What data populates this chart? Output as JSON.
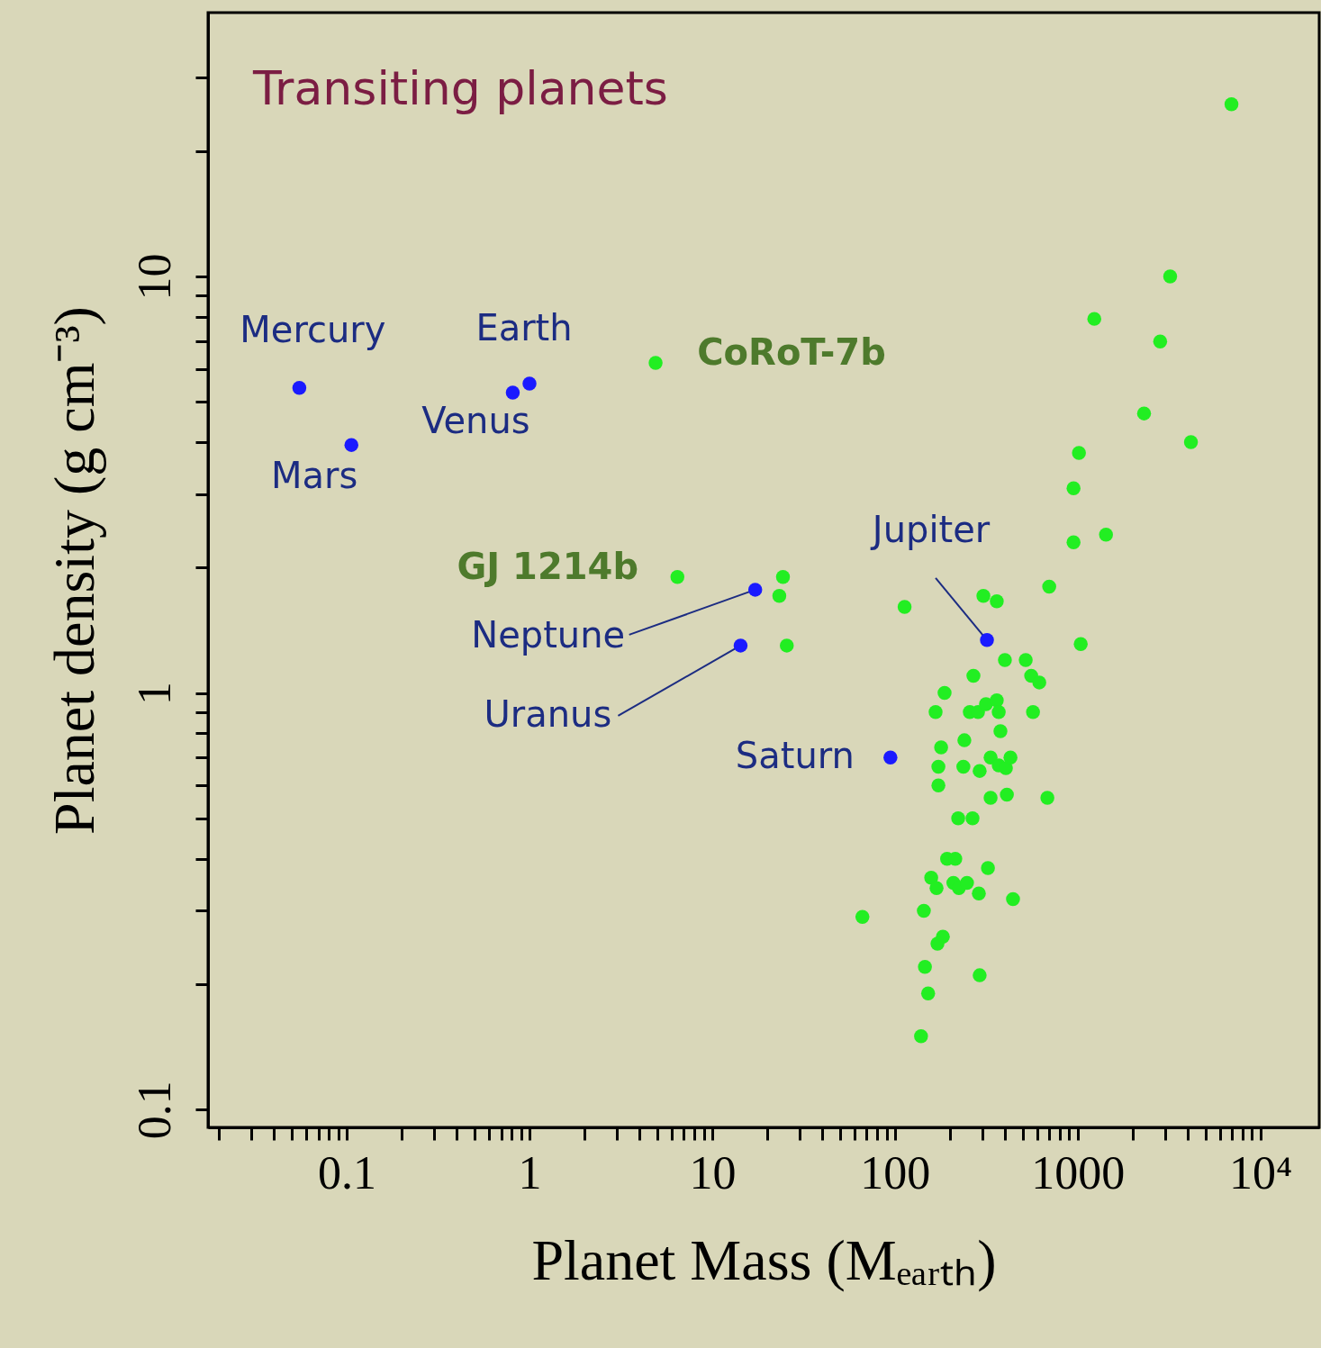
{
  "chart_data": {
    "type": "scatter",
    "title": "Transiting planets",
    "xlabel": "Planet Mass (Mₑₐᵣₜₕ)",
    "ylabel": "Planet density (g cm⁻³)",
    "log": "xy",
    "grid": false,
    "marker": "circle",
    "xlim": [
      0.0174,
      21000
    ],
    "ylim": [
      0.0906,
      43
    ],
    "xticks": [
      {
        "value": 0.02,
        "label": null
      },
      {
        "value": 0.03,
        "label": null
      },
      {
        "value": 0.04,
        "label": null
      },
      {
        "value": 0.05,
        "label": null
      },
      {
        "value": 0.06,
        "label": null
      },
      {
        "value": 0.07,
        "label": null
      },
      {
        "value": 0.08,
        "label": null
      },
      {
        "value": 0.09,
        "label": null
      },
      0.1,
      {
        "value": 0.2,
        "label": null
      },
      {
        "value": 0.3,
        "label": null
      },
      {
        "value": 0.4,
        "label": null
      },
      {
        "value": 0.5,
        "label": null
      },
      {
        "value": 0.6,
        "label": null
      },
      {
        "value": 0.7,
        "label": null
      },
      {
        "value": 0.8,
        "label": null
      },
      {
        "value": 0.9,
        "label": null
      },
      1,
      {
        "value": 2,
        "label": null
      },
      {
        "value": 3,
        "label": null
      },
      {
        "value": 4,
        "label": null
      },
      {
        "value": 5,
        "label": null
      },
      {
        "value": 6,
        "label": null
      },
      {
        "value": 7,
        "label": null
      },
      {
        "value": 8,
        "label": null
      },
      {
        "value": 9,
        "label": null
      },
      10,
      {
        "value": 20,
        "label": null
      },
      {
        "value": 30,
        "label": null
      },
      {
        "value": 40,
        "label": null
      },
      {
        "value": 50,
        "label": null
      },
      {
        "value": 60,
        "label": null
      },
      {
        "value": 70,
        "label": null
      },
      {
        "value": 80,
        "label": null
      },
      {
        "value": 90,
        "label": null
      },
      100,
      {
        "value": 200,
        "label": null
      },
      {
        "value": 300,
        "label": null
      },
      {
        "value": 400,
        "label": null
      },
      {
        "value": 500,
        "label": null
      },
      {
        "value": 600,
        "label": null
      },
      {
        "value": 700,
        "label": null
      },
      {
        "value": 800,
        "label": null
      },
      {
        "value": 900,
        "label": null
      },
      1000,
      {
        "value": 2000,
        "label": null
      },
      {
        "value": 3000,
        "label": null
      },
      {
        "value": 4000,
        "label": null
      },
      {
        "value": 5000,
        "label": null
      },
      {
        "value": 6000,
        "label": null
      },
      {
        "value": 7000,
        "label": null
      },
      {
        "value": 8000,
        "label": null
      },
      {
        "value": 9000,
        "label": null
      },
      {
        "value": 10000,
        "label": "10⁴"
      }
    ],
    "yticks": [
      {
        "value": 0.1,
        "label": "0.1"
      },
      {
        "value": 0.2,
        "label": null
      },
      {
        "value": 0.3,
        "label": null
      },
      {
        "value": 0.4,
        "label": null
      },
      {
        "value": 0.5,
        "label": null
      },
      {
        "value": 0.6,
        "label": null
      },
      {
        "value": 0.7,
        "label": null
      },
      {
        "value": 0.8,
        "label": null
      },
      {
        "value": 0.9,
        "label": null
      },
      1,
      {
        "value": 2,
        "label": null
      },
      {
        "value": 3,
        "label": null
      },
      {
        "value": 4,
        "label": null
      },
      {
        "value": 5,
        "label": null
      },
      {
        "value": 6,
        "label": null
      },
      {
        "value": 7,
        "label": null
      },
      {
        "value": 8,
        "label": null
      },
      {
        "value": 9,
        "label": null
      },
      10,
      {
        "value": 20,
        "label": null
      },
      {
        "value": 30,
        "label": null
      }
    ],
    "series": [
      {
        "color": "#1a1aff",
        "x": [
          0.055,
          0.106,
          0.81,
          1.0,
          17.2,
          14.3,
          94.5,
          319
        ],
        "values": [
          5.4,
          3.94,
          5.26,
          5.53,
          1.77,
          1.3,
          0.7,
          1.34
        ]
      },
      {
        "color": "#22ee22",
        "x": [
          6950,
          4.9,
          6.45,
          24.4,
          23.3,
          25.6,
          3210,
          1234,
          2830,
          2310,
          4170,
          1017,
          950,
          950,
          1430,
          699,
          1040,
          113,
          305,
          361,
          400,
          520,
          269,
          557,
          617,
          187,
          167,
          257,
          285,
          315,
          361,
          370,
          570,
          378,
          240,
          179,
          173,
          237,
          291,
          334,
          370,
          405,
          429,
          173,
          334,
          410,
          683,
          222,
          266,
          193,
          214,
          323,
          158,
          169,
          209,
          224,
          248,
          288,
          443,
          66.4,
          144,
          183,
          171,
          146,
          152,
          291,
          139
        ],
        "values": [
          25.9,
          6.2,
          1.9,
          1.9,
          1.71,
          1.3,
          10,
          7.91,
          6.98,
          4.69,
          4.0,
          3.77,
          3.1,
          2.3,
          2.4,
          1.8,
          1.31,
          1.61,
          1.71,
          1.66,
          1.2,
          1.2,
          1.1,
          1.1,
          1.06,
          1.0,
          0.9,
          0.9,
          0.9,
          0.94,
          0.96,
          0.9,
          0.9,
          0.81,
          0.77,
          0.74,
          0.665,
          0.665,
          0.65,
          0.7,
          0.67,
          0.66,
          0.7,
          0.6,
          0.56,
          0.57,
          0.56,
          0.5,
          0.5,
          0.4,
          0.4,
          0.38,
          0.36,
          0.34,
          0.35,
          0.34,
          0.35,
          0.33,
          0.32,
          0.29,
          0.3,
          0.26,
          0.25,
          0.22,
          0.19,
          0.21,
          0.15
        ]
      }
    ],
    "annotations": [
      {
        "text": "Mercury",
        "x": 0.055,
        "y": 5.4
      },
      {
        "text": "Mars",
        "x": 0.106,
        "y": 3.94
      },
      {
        "text": "Venus",
        "x": 0.81,
        "y": 5.26
      },
      {
        "text": "Earth",
        "x": 1.0,
        "y": 5.53
      },
      {
        "text": "Neptune",
        "x": 17.2,
        "y": 1.77
      },
      {
        "text": "Uranus",
        "x": 14.3,
        "y": 1.3
      },
      {
        "text": "Saturn",
        "x": 94.5,
        "y": 0.7
      },
      {
        "text": "Jupiter",
        "x": 319,
        "y": 1.34
      },
      {
        "text": "CoRoT-7b",
        "x": 4.9,
        "y": 6.2
      },
      {
        "text": "GJ 1214b",
        "x": 6.45,
        "y": 1.9
      }
    ]
  }
}
